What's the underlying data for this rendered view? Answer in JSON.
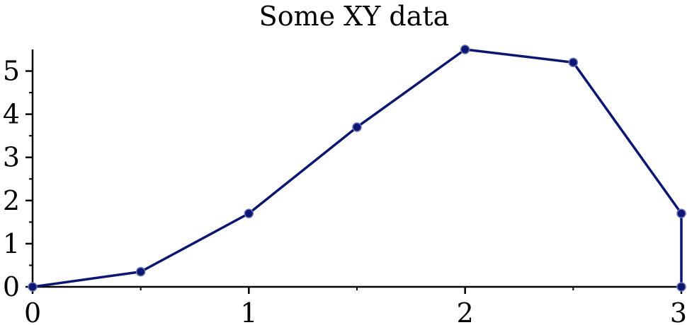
{
  "chart_data": {
    "type": "line",
    "title": "Some XY data",
    "xlabel": "",
    "ylabel": "",
    "x": [
      0,
      0.5,
      1,
      1.5,
      2,
      2.5,
      3,
      3
    ],
    "y": [
      0,
      0.35,
      1.7,
      3.7,
      5.5,
      5.2,
      1.7,
      0
    ],
    "xlim": [
      0,
      3
    ],
    "ylim": [
      0,
      5.5
    ],
    "x_ticks": [
      0,
      1,
      2,
      3
    ],
    "x_tick_labels": [
      "0",
      "1",
      "2",
      "3"
    ],
    "x_minor_ticks": [
      0.5,
      1.5,
      2.5
    ],
    "y_ticks": [
      0,
      1,
      2,
      3,
      4,
      5
    ],
    "y_tick_labels": [
      "0",
      "1",
      "2",
      "3",
      "4",
      "5"
    ],
    "y_minor_ticks": [
      0.5,
      1.5,
      2.5,
      3.5,
      4.5
    ],
    "grid": false,
    "legend": "none",
    "colors": {
      "series": "#0b1770",
      "axis": "#000000"
    }
  }
}
